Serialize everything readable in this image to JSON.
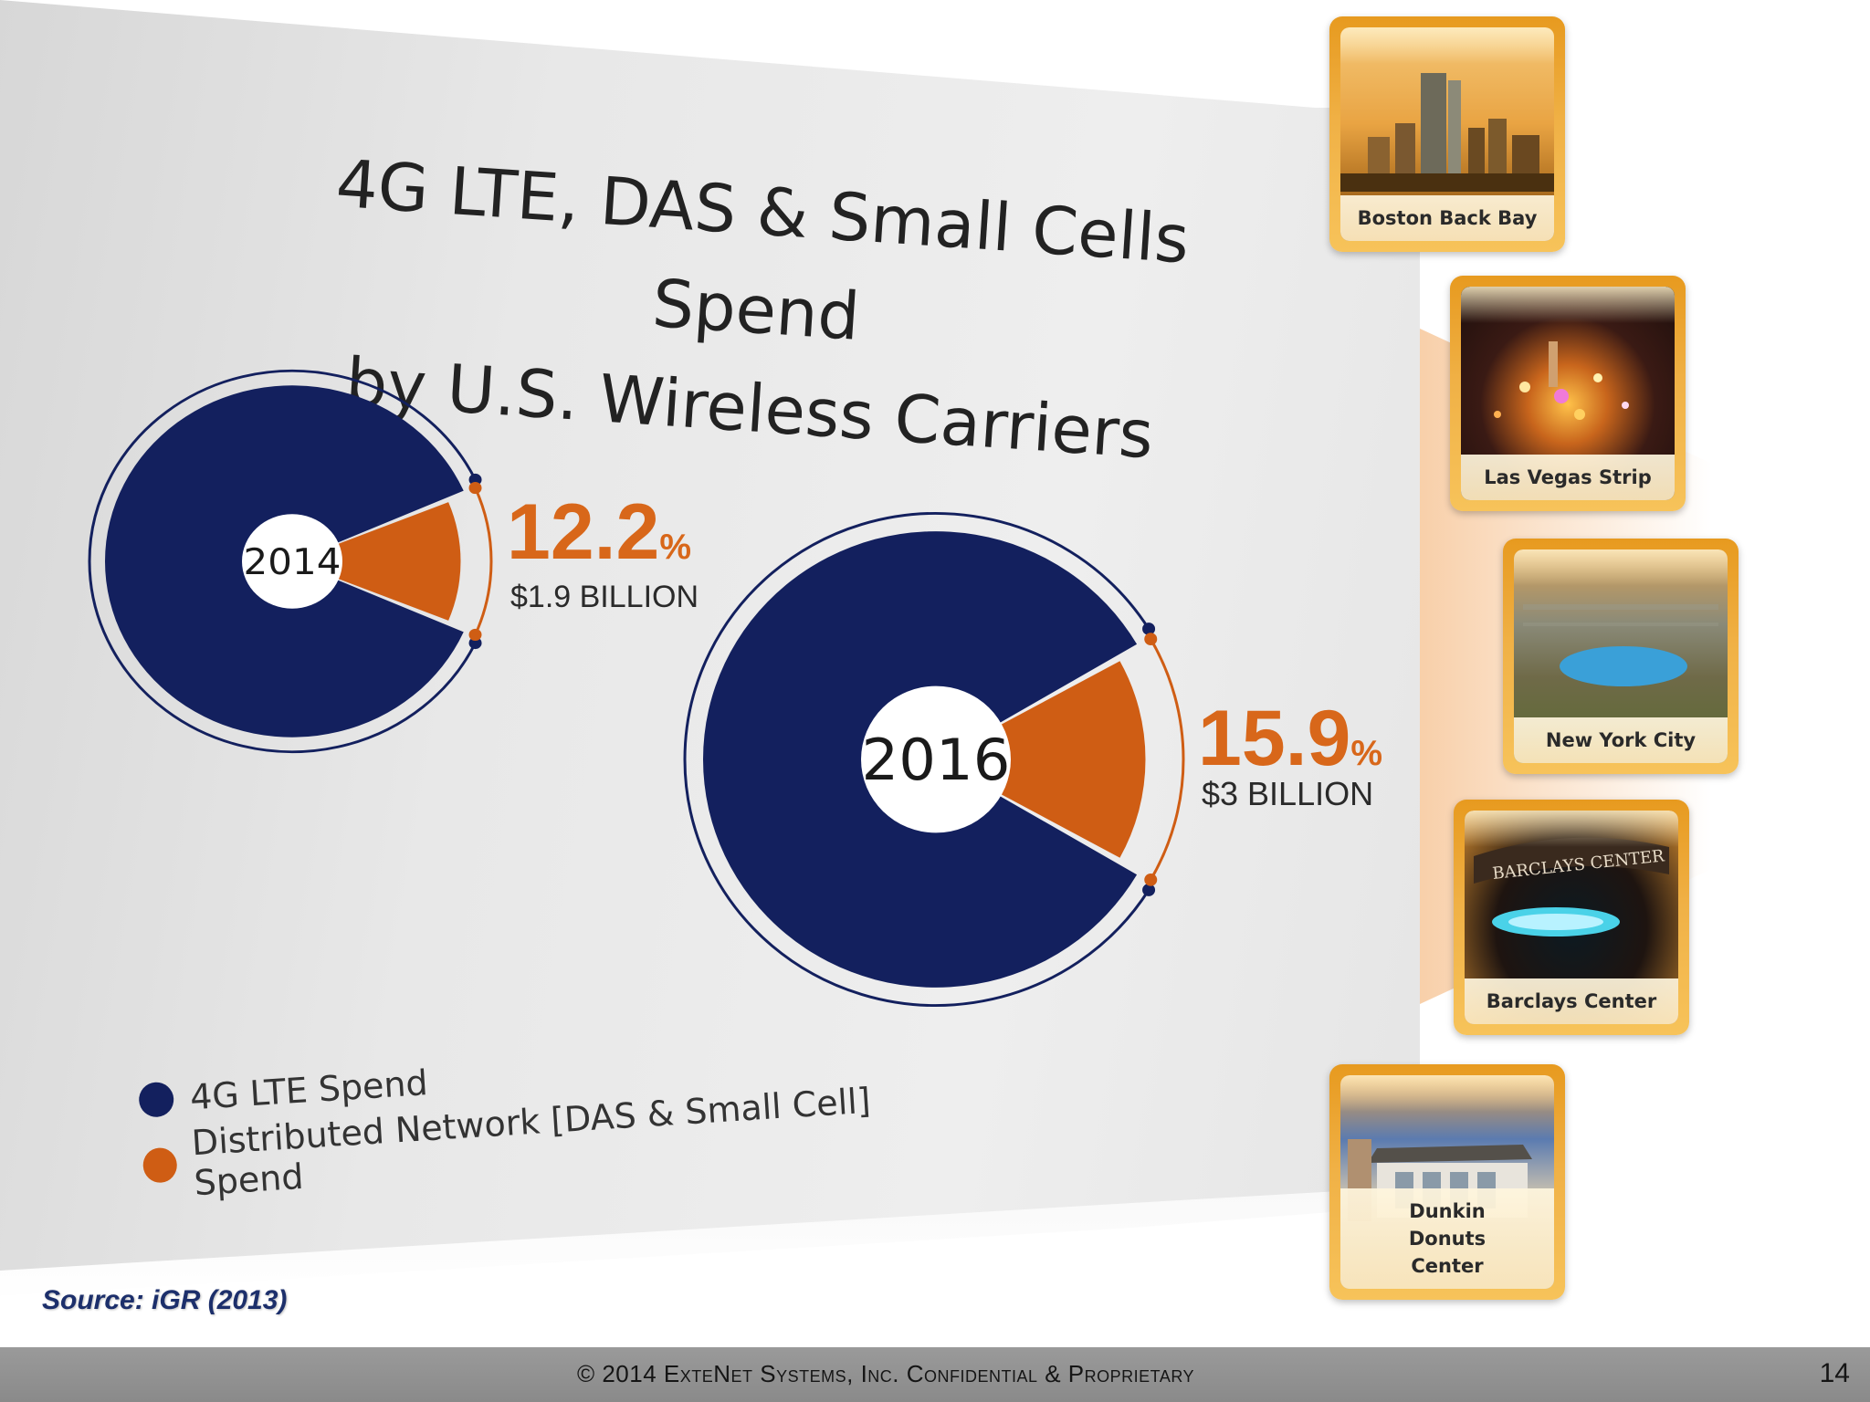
{
  "slide": {
    "title_line1": "4G LTE, DAS & Small Cells Spend",
    "title_line2": "by U.S. Wireless Carriers",
    "source": "Source: iGR (2013)",
    "footer": "© 2014 ExteNet Systems, Inc. Confidential & Proprietary",
    "page_number": "14"
  },
  "colors": {
    "lte": "#13205e",
    "das": "#cf5d14",
    "percent": "#d8671a"
  },
  "chart_data": {
    "type": "pie",
    "title": "4G LTE, DAS & Small Cells Spend by U.S. Wireless Carriers",
    "legend": [
      "4G LTE Spend",
      "Distributed Network [DAS & Small Cell] Spend"
    ],
    "charts": [
      {
        "year": "2014",
        "das_percent": 12.2,
        "lte_percent": 87.8,
        "percent_value": "12.2",
        "percent_sign": "%",
        "amount_label": "$1.9 BILLION"
      },
      {
        "year": "2016",
        "das_percent": 15.9,
        "lte_percent": 84.1,
        "percent_value": "15.9",
        "percent_sign": "%",
        "amount_label": "$3 BILLION"
      }
    ]
  },
  "venues": [
    {
      "label": "Boston Back Bay",
      "icon": "skyline-photo"
    },
    {
      "label": "Las Vegas Strip",
      "icon": "night-city-photo"
    },
    {
      "label": "New York City",
      "icon": "central-park-photo"
    },
    {
      "label": "Barclays Center",
      "icon": "arena-photo",
      "sign_text": "BARCLAYS CENTER"
    },
    {
      "label": "Dunkin Donuts Center",
      "icon": "arena-exterior-photo"
    }
  ]
}
